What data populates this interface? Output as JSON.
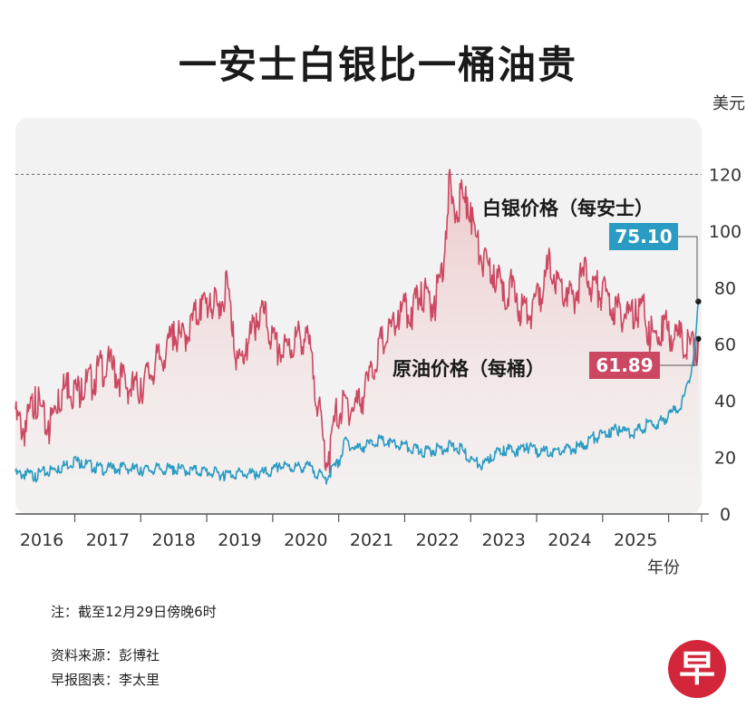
{
  "title": "一安士白银比一桶油贵",
  "chart_data": {
    "type": "line",
    "title": "一安士白银比一桶油贵",
    "ylabel": "美元",
    "xlabel": "年份",
    "ylim": [
      0,
      140
    ],
    "xlim": [
      2015.6,
      2026.0
    ],
    "yticks": [
      0,
      20,
      40,
      60,
      80,
      100,
      120
    ],
    "reference_line": 120,
    "x_ticks": [
      2016,
      2017,
      2018,
      2019,
      2020,
      2021,
      2022,
      2023,
      2024,
      2025
    ],
    "series": [
      {
        "name": "原油价格（每桶）",
        "label": "原油价格（每桶）",
        "color": "#cc4862",
        "last_value": "61.89",
        "x": [
          2015.6,
          2015.75,
          2015.9,
          2016.0,
          2016.1,
          2016.25,
          2016.4,
          2016.5,
          2016.6,
          2016.75,
          2016.9,
          2017.0,
          2017.1,
          2017.25,
          2017.4,
          2017.5,
          2017.6,
          2017.75,
          2017.9,
          2018.0,
          2018.1,
          2018.25,
          2018.4,
          2018.55,
          2018.7,
          2018.8,
          2018.9,
          2018.98,
          2019.1,
          2019.25,
          2019.35,
          2019.5,
          2019.6,
          2019.75,
          2019.9,
          2020.0,
          2020.1,
          2020.2,
          2020.28,
          2020.35,
          2020.45,
          2020.6,
          2020.75,
          2020.9,
          2021.0,
          2021.1,
          2021.25,
          2021.4,
          2021.5,
          2021.6,
          2021.75,
          2021.85,
          2021.95,
          2022.05,
          2022.12,
          2022.17,
          2022.25,
          2022.35,
          2022.45,
          2022.5,
          2022.6,
          2022.7,
          2022.75,
          2022.85,
          2022.95,
          2023.0,
          2023.1,
          2023.2,
          2023.3,
          2023.45,
          2023.55,
          2023.7,
          2023.8,
          2023.95,
          2024.05,
          2024.15,
          2024.25,
          2024.35,
          2024.5,
          2024.6,
          2024.75,
          2024.9,
          2025.0,
          2025.1,
          2025.2,
          2025.3,
          2025.4,
          2025.5,
          2025.6,
          2025.7,
          2025.8,
          2025.9,
          2025.95
        ],
        "values": [
          37,
          33,
          45,
          38,
          33,
          44,
          50,
          46,
          48,
          50,
          55,
          56,
          54,
          50,
          47,
          48,
          52,
          57,
          62,
          68,
          64,
          70,
          76,
          78,
          75,
          86,
          68,
          55,
          62,
          71,
          75,
          64,
          60,
          62,
          66,
          66,
          57,
          40,
          26,
          22,
          38,
          42,
          41,
          47,
          53,
          62,
          66,
          72,
          75,
          73,
          82,
          80,
          77,
          88,
          100,
          120,
          108,
          115,
          112,
          110,
          98,
          92,
          90,
          88,
          84,
          82,
          84,
          78,
          75,
          76,
          80,
          92,
          86,
          80,
          79,
          85,
          89,
          84,
          82,
          78,
          75,
          74,
          76,
          77,
          68,
          64,
          70,
          68,
          67,
          65,
          63,
          62,
          61.89
        ]
      },
      {
        "name": "白银价格（每安士）",
        "label": "白银价格（每安士）",
        "color": "#2a9bc2",
        "last_value": "75.10",
        "x": [
          2015.6,
          2015.75,
          2015.9,
          2016.0,
          2016.25,
          2016.5,
          2016.6,
          2016.75,
          2016.9,
          2017.0,
          2017.25,
          2017.5,
          2017.75,
          2018.0,
          2018.25,
          2018.5,
          2018.75,
          2019.0,
          2019.25,
          2019.5,
          2019.6,
          2019.75,
          2019.9,
          2020.0,
          2020.1,
          2020.2,
          2020.3,
          2020.4,
          2020.5,
          2020.6,
          2020.75,
          2021.0,
          2021.1,
          2021.25,
          2021.5,
          2021.75,
          2022.0,
          2022.2,
          2022.35,
          2022.5,
          2022.7,
          2022.8,
          2023.0,
          2023.2,
          2023.35,
          2023.5,
          2023.75,
          2024.0,
          2024.2,
          2024.35,
          2024.5,
          2024.6,
          2024.75,
          2024.9,
          2025.0,
          2025.2,
          2025.35,
          2025.5,
          2025.6,
          2025.7,
          2025.8,
          2025.9,
          2025.95
        ],
        "values": [
          15,
          15.2,
          14.5,
          15.5,
          17,
          20,
          19,
          18,
          17,
          17,
          17.5,
          16.5,
          17,
          16.8,
          16.5,
          16,
          15,
          15.5,
          15,
          16,
          18,
          17.5,
          17.5,
          18,
          17,
          15,
          13,
          17,
          19,
          27,
          24,
          26,
          27,
          26,
          25,
          23,
          24,
          25,
          24,
          20,
          18,
          21,
          24,
          23,
          25,
          23,
          23,
          24,
          25,
          28,
          29,
          30,
          31,
          30,
          30,
          33,
          33,
          36,
          38,
          40,
          47,
          60,
          75.1
        ]
      }
    ]
  },
  "notes": {
    "time_note": "注：截至12月29日傍晚6时",
    "source": "资料来源：彭博社",
    "credit": "早报图表：李太里"
  },
  "logo_text": "早"
}
